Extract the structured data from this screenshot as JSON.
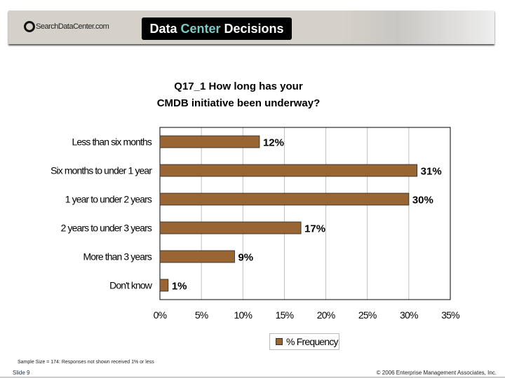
{
  "header": {
    "logo_text": "SearchDataCenter.com",
    "brand_part1": "Data ",
    "brand_part2": "Center",
    "brand_part3": " Decisions"
  },
  "chart_data": {
    "type": "bar",
    "orientation": "horizontal",
    "title_line1": "Q17_1 How long has your",
    "title_line2": "CMDB initiative been underway?",
    "categories": [
      "Less than six months",
      "Six months to under 1 year",
      "1 year to under 2 years",
      "2 years to under 3 years",
      "More than 3 years",
      "Don't know"
    ],
    "series": [
      {
        "name": "% Frequency",
        "values": [
          12,
          31,
          30,
          17,
          9,
          1
        ]
      }
    ],
    "data_labels": [
      "12%",
      "31%",
      "30%",
      "17%",
      "9%",
      "1%"
    ],
    "xlim": [
      0,
      35
    ],
    "xticks": [
      "0%",
      "5%",
      "10%",
      "15%",
      "20%",
      "25%",
      "30%",
      "35%"
    ],
    "grid": true,
    "legend_placement": "bottom",
    "bar_color": "#996633"
  },
  "footer": {
    "note": "Sample Size = 174: Responses not shown received 1% or less",
    "slide": "Slide 9",
    "copyright": "© 2006 Enterprise Management Associates, Inc."
  }
}
